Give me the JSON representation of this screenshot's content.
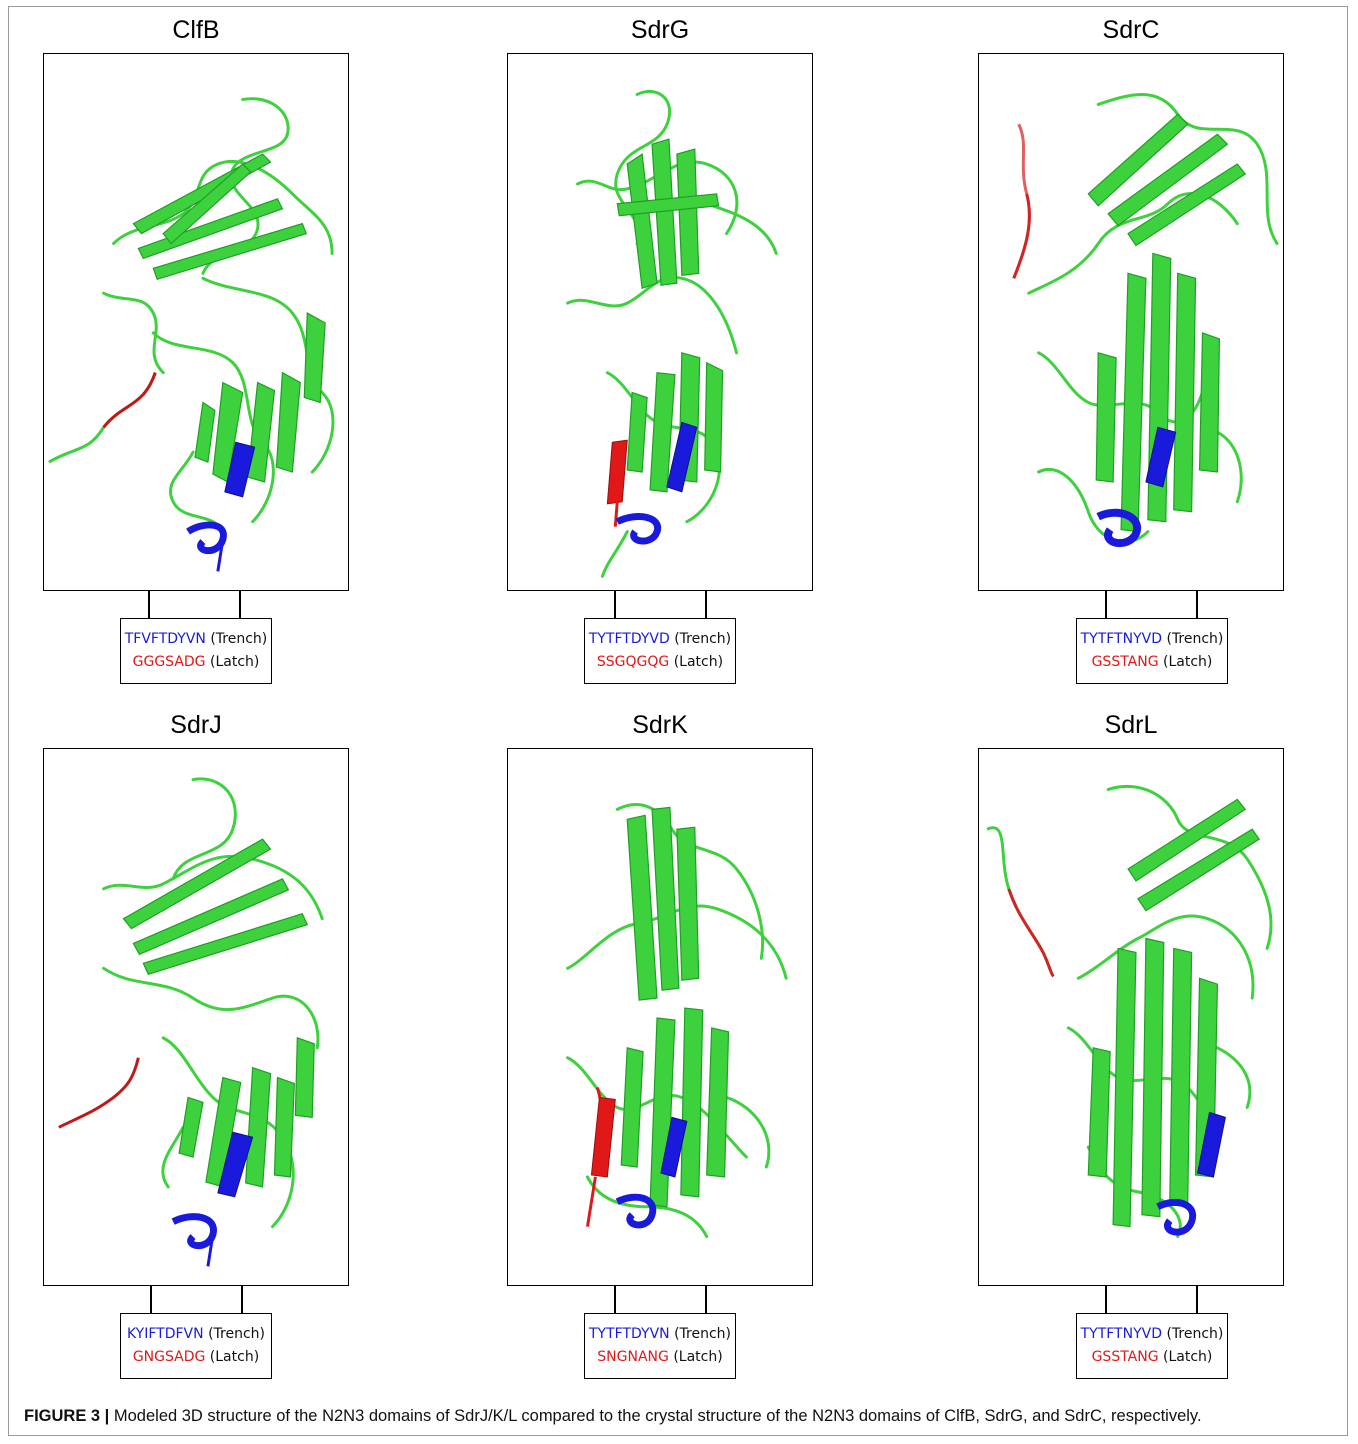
{
  "figure": {
    "caption_label": "FIGURE 3 |",
    "caption_text": " Modeled 3D structure of the N2N3 domains of SdrJ/K/L compared to the crystal structure of the N2N3 domains of ClfB, SdrG, and SdrC, respectively."
  },
  "colors": {
    "ribbon_green": "#3dd13d",
    "ribbon_dark": "#1f9e24",
    "trench_blue": "#1a1adc",
    "latch_red": "#e01818"
  },
  "panels": [
    {
      "title": "ClfB",
      "trench_seq": "TFVFTDYVN",
      "trench_label": "(Trench)",
      "latch_seq": "GGGSADG",
      "latch_label": "(Latch)"
    },
    {
      "title": "SdrG",
      "trench_seq": "TYTFTDYVD",
      "trench_label": "(Trench)",
      "latch_seq": "SSGQGQG",
      "latch_label": "(Latch)"
    },
    {
      "title": "SdrC",
      "trench_seq": "TYTFTNYVD",
      "trench_label": "(Trench)",
      "latch_seq": "GSSTANG",
      "latch_label": "(Latch)"
    },
    {
      "title": "SdrJ",
      "trench_seq": "KYIFTDFVN",
      "trench_label": "(Trench)",
      "latch_seq": "GNGSADG",
      "latch_label": "(Latch)"
    },
    {
      "title": "SdrK",
      "trench_seq": "TYTFTDYVN",
      "trench_label": "(Trench)",
      "latch_seq": "SNGNANG",
      "latch_label": "(Latch)"
    },
    {
      "title": "SdrL",
      "trench_seq": "TYTFTNYVD",
      "trench_label": "(Trench)",
      "latch_seq": "GSSTANG",
      "latch_label": "(Latch)"
    }
  ]
}
